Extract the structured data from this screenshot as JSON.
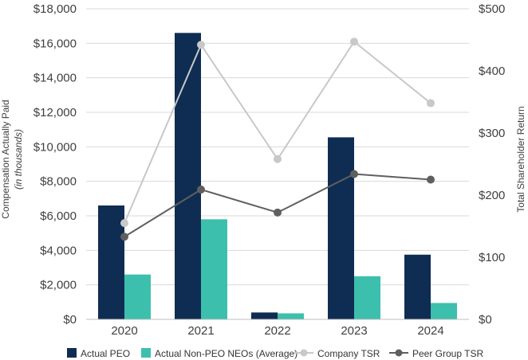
{
  "chart_data": {
    "type": "bar",
    "categories": [
      "2020",
      "2021",
      "2022",
      "2023",
      "2024"
    ],
    "series": [
      {
        "name": "Actual PEO",
        "kind": "bar",
        "axis": "left",
        "color": "#0f2d52",
        "values": [
          6600,
          16600,
          400,
          10550,
          3750
        ]
      },
      {
        "name": "Actual Non-PEO NEOs (Average)",
        "kind": "bar",
        "axis": "left",
        "color": "#3dbfad",
        "values": [
          2600,
          5800,
          350,
          2500,
          950
        ]
      },
      {
        "name": "Company TSR",
        "kind": "line",
        "axis": "right",
        "color": "#c8c8c8",
        "values": [
          155,
          442,
          258,
          447,
          348
        ]
      },
      {
        "name": "Peer Group TSR",
        "kind": "line",
        "axis": "right",
        "color": "#5f5f5f",
        "values": [
          133,
          209,
          172,
          234,
          225
        ]
      }
    ],
    "y_left": {
      "title": "Compensation Actually Paid",
      "subtitle": "(in thousands)",
      "range": [
        0,
        18000
      ],
      "ticks": [
        0,
        2000,
        4000,
        6000,
        8000,
        10000,
        12000,
        14000,
        16000,
        18000
      ],
      "tick_labels": [
        "$0",
        "$2,000",
        "$4,000",
        "$6,000",
        "$8,000",
        "$10,000",
        "$12,000",
        "$14,000",
        "$16,000",
        "$18,000"
      ]
    },
    "y_right": {
      "title": "Total Shareholder Return",
      "range": [
        0,
        500
      ],
      "ticks": [
        0,
        100,
        200,
        300,
        400,
        500
      ],
      "tick_labels": [
        "$0",
        "$100",
        "$200",
        "$300",
        "$400",
        "$500"
      ]
    },
    "legend": {
      "placement": "bottom",
      "items": [
        {
          "label": "Actual PEO",
          "marker": "square",
          "color": "#0f2d52"
        },
        {
          "label": "Actual Non-PEO NEOs (Average)",
          "marker": "square",
          "color": "#3dbfad"
        },
        {
          "label": "Company TSR",
          "marker": "line-dot",
          "color": "#c8c8c8"
        },
        {
          "label": "Peer Group TSR",
          "marker": "line-dot",
          "color": "#5f5f5f"
        }
      ]
    },
    "grid": true
  }
}
